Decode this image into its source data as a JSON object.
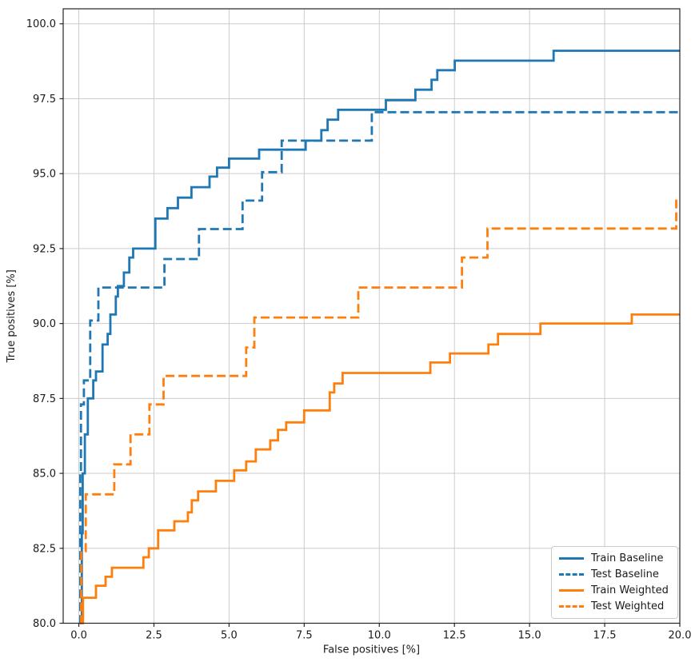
{
  "chart_data": {
    "type": "line",
    "subtype": "step-after",
    "title": "",
    "xlabel": "False positives [%]",
    "ylabel": "True positives [%]",
    "xlim": [
      -0.52,
      20
    ],
    "ylim": [
      80,
      100.5
    ],
    "grid": true,
    "grid_color": "#cccccc",
    "spine_color": "#262626",
    "tick_color": "#1a1a1a",
    "background": "#ffffff",
    "legend_position": "lower right",
    "x_ticks": {
      "values": [
        0,
        2.5,
        5,
        7.5,
        10,
        12.5,
        15,
        17.5,
        20
      ],
      "labels": [
        "0.0",
        "2.5",
        "5.0",
        "7.5",
        "10.0",
        "12.5",
        "15.0",
        "17.5",
        "20.0"
      ]
    },
    "y_ticks": {
      "values": [
        80,
        82.5,
        85,
        87.5,
        90,
        92.5,
        95,
        97.5,
        100
      ],
      "labels": [
        "80.0",
        "82.5",
        "85.0",
        "87.5",
        "90.0",
        "92.5",
        "95.0",
        "97.5",
        "100.0"
      ]
    },
    "series": [
      {
        "name": "Train Baseline",
        "color": "#1f77b4",
        "style": "solid",
        "points": [
          [
            0.08,
            80.0
          ],
          [
            0.1,
            83.0
          ],
          [
            0.13,
            85.0
          ],
          [
            0.2,
            86.3
          ],
          [
            0.3,
            87.5
          ],
          [
            0.48,
            88.1
          ],
          [
            0.57,
            88.4
          ],
          [
            0.79,
            89.3
          ],
          [
            0.96,
            89.65
          ],
          [
            1.05,
            90.3
          ],
          [
            1.23,
            90.9
          ],
          [
            1.3,
            91.25
          ],
          [
            1.5,
            91.7
          ],
          [
            1.68,
            92.2
          ],
          [
            1.81,
            92.5
          ],
          [
            2.55,
            93.5
          ],
          [
            2.95,
            93.85
          ],
          [
            3.3,
            94.2
          ],
          [
            3.75,
            94.55
          ],
          [
            4.35,
            94.9
          ],
          [
            4.6,
            95.2
          ],
          [
            5.0,
            95.5
          ],
          [
            6.0,
            95.8
          ],
          [
            7.55,
            96.1
          ],
          [
            8.07,
            96.45
          ],
          [
            8.28,
            96.8
          ],
          [
            8.63,
            97.13
          ],
          [
            10.22,
            97.45
          ],
          [
            11.2,
            97.8
          ],
          [
            11.74,
            98.13
          ],
          [
            11.93,
            98.45
          ],
          [
            12.51,
            98.77
          ],
          [
            15.8,
            99.1
          ],
          [
            20.0,
            99.1
          ]
        ]
      },
      {
        "name": "Test Baseline",
        "color": "#1f77b4",
        "style": "dashed",
        "points": [
          [
            0.03,
            80.0
          ],
          [
            0.05,
            85.0
          ],
          [
            0.07,
            87.3
          ],
          [
            0.17,
            88.1
          ],
          [
            0.38,
            90.1
          ],
          [
            0.65,
            91.2
          ],
          [
            2.85,
            92.15
          ],
          [
            4.0,
            93.15
          ],
          [
            5.45,
            94.1
          ],
          [
            6.1,
            95.05
          ],
          [
            6.75,
            96.1
          ],
          [
            9.75,
            97.05
          ],
          [
            20.0,
            97.05
          ]
        ]
      },
      {
        "name": "Train Weighted",
        "color": "#ff7f0e",
        "style": "solid",
        "points": [
          [
            0.12,
            80.0
          ],
          [
            0.14,
            80.85
          ],
          [
            0.57,
            81.25
          ],
          [
            0.89,
            81.55
          ],
          [
            1.1,
            81.85
          ],
          [
            2.15,
            82.2
          ],
          [
            2.33,
            82.5
          ],
          [
            2.64,
            83.1
          ],
          [
            3.18,
            83.4
          ],
          [
            3.63,
            83.7
          ],
          [
            3.76,
            84.1
          ],
          [
            3.97,
            84.4
          ],
          [
            4.56,
            84.75
          ],
          [
            5.17,
            85.1
          ],
          [
            5.57,
            85.4
          ],
          [
            5.89,
            85.8
          ],
          [
            6.37,
            86.1
          ],
          [
            6.63,
            86.45
          ],
          [
            6.9,
            86.7
          ],
          [
            7.5,
            87.1
          ],
          [
            8.35,
            87.7
          ],
          [
            8.5,
            88.0
          ],
          [
            8.78,
            88.35
          ],
          [
            11.7,
            88.7
          ],
          [
            12.35,
            89.0
          ],
          [
            13.63,
            89.3
          ],
          [
            13.95,
            89.65
          ],
          [
            15.36,
            90.0
          ],
          [
            18.4,
            90.3
          ],
          [
            20.0,
            90.3
          ]
        ]
      },
      {
        "name": "Test Weighted",
        "color": "#ff7f0e",
        "style": "dashed",
        "points": [
          [
            0.05,
            80.0
          ],
          [
            0.08,
            82.4
          ],
          [
            0.23,
            84.3
          ],
          [
            1.18,
            85.3
          ],
          [
            1.72,
            86.3
          ],
          [
            2.35,
            87.3
          ],
          [
            2.82,
            88.25
          ],
          [
            5.57,
            89.2
          ],
          [
            5.84,
            90.2
          ],
          [
            9.3,
            91.2
          ],
          [
            12.75,
            92.2
          ],
          [
            13.6,
            93.17
          ],
          [
            19.88,
            94.15
          ],
          [
            20.0,
            94.15
          ]
        ]
      }
    ]
  }
}
